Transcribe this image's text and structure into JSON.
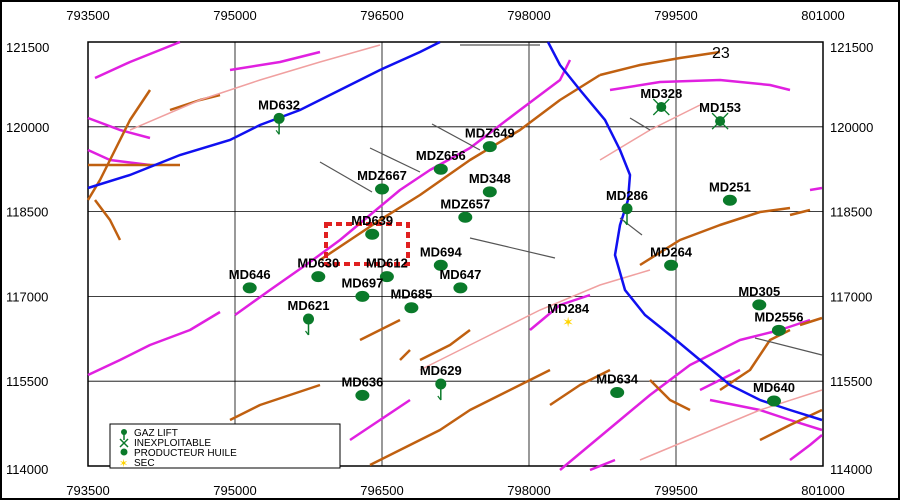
{
  "map": {
    "zone_label": "23",
    "x_ticks": [
      "793500",
      "795000",
      "796500",
      "798000",
      "799500",
      "801000"
    ],
    "y_ticks": [
      "121500",
      "120000",
      "118500",
      "117000",
      "115500",
      "114000"
    ],
    "highlighted_well": "MD639",
    "colors": {
      "fault_primary": "#e020e0",
      "fault_secondary": "#c06010",
      "fault_light": "#f0a0a0",
      "river": "#1010f0",
      "grid": "#000000",
      "well_marker": "#0a7a2a",
      "dry_marker": "#ffd400",
      "highlight_box": "#e02020"
    },
    "wells": [
      {
        "id": "MD632",
        "x": 795450,
        "y": 120150,
        "type": "gas-lift"
      },
      {
        "id": "MD328",
        "x": 799350,
        "y": 120350,
        "type": "inexploitable"
      },
      {
        "id": "MD153",
        "x": 799950,
        "y": 120100,
        "type": "inexploitable"
      },
      {
        "id": "MDZ649",
        "x": 797600,
        "y": 119650,
        "type": "producteur-huile"
      },
      {
        "id": "MDZ656",
        "x": 797100,
        "y": 119250,
        "type": "producteur-huile"
      },
      {
        "id": "MDZ667",
        "x": 796500,
        "y": 118900,
        "type": "producteur-huile"
      },
      {
        "id": "MD348",
        "x": 797600,
        "y": 118850,
        "type": "producteur-huile"
      },
      {
        "id": "MD251",
        "x": 800050,
        "y": 118700,
        "type": "producteur-huile"
      },
      {
        "id": "MD286",
        "x": 799000,
        "y": 118550,
        "type": "gas-lift"
      },
      {
        "id": "MDZ657",
        "x": 797350,
        "y": 118400,
        "type": "producteur-huile"
      },
      {
        "id": "MD639",
        "x": 796400,
        "y": 118100,
        "type": "producteur-huile"
      },
      {
        "id": "MD694",
        "x": 797100,
        "y": 117550,
        "type": "producteur-huile"
      },
      {
        "id": "MD264",
        "x": 799450,
        "y": 117550,
        "type": "producteur-huile"
      },
      {
        "id": "MD630",
        "x": 795850,
        "y": 117350,
        "type": "producteur-huile"
      },
      {
        "id": "MD612",
        "x": 796550,
        "y": 117350,
        "type": "producteur-huile"
      },
      {
        "id": "MD646",
        "x": 795150,
        "y": 117150,
        "type": "producteur-huile"
      },
      {
        "id": "MD647",
        "x": 797300,
        "y": 117150,
        "type": "producteur-huile"
      },
      {
        "id": "MD697",
        "x": 796300,
        "y": 117000,
        "type": "producteur-huile"
      },
      {
        "id": "MD685",
        "x": 796800,
        "y": 116800,
        "type": "producteur-huile"
      },
      {
        "id": "MD305",
        "x": 800350,
        "y": 116850,
        "type": "producteur-huile"
      },
      {
        "id": "MD621",
        "x": 795750,
        "y": 116600,
        "type": "gas-lift"
      },
      {
        "id": "MD284",
        "x": 798400,
        "y": 116550,
        "type": "sec"
      },
      {
        "id": "MD2556",
        "x": 800550,
        "y": 116400,
        "type": "producteur-huile"
      },
      {
        "id": "MD629",
        "x": 797100,
        "y": 115450,
        "type": "gas-lift"
      },
      {
        "id": "MD636",
        "x": 796300,
        "y": 115250,
        "type": "producteur-huile"
      },
      {
        "id": "MD634",
        "x": 798900,
        "y": 115300,
        "type": "producteur-huile"
      },
      {
        "id": "MD640",
        "x": 800500,
        "y": 115150,
        "type": "producteur-huile"
      }
    ]
  },
  "legend": {
    "items": [
      {
        "label": "GAZ LIFT",
        "icon": "gas-lift-icon"
      },
      {
        "label": "INEXPLOITABLE",
        "icon": "inexploitable-icon"
      },
      {
        "label": "PRODUCTEUR HUILE",
        "icon": "oil-producer-icon"
      },
      {
        "label": "SEC",
        "icon": "dry-well-icon"
      }
    ]
  }
}
